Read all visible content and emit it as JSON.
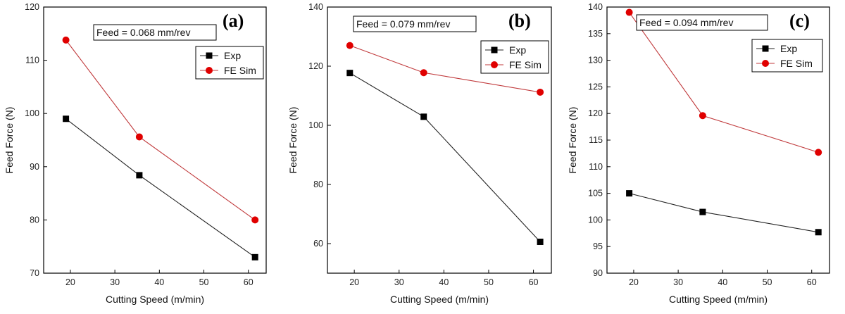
{
  "chart_data": [
    {
      "type": "line",
      "panel_label": "(a)",
      "annotation": "Feed = 0.068 mm/rev",
      "xlabel": "Cutting Speed (m/min)",
      "ylabel": "Feed Force (N)",
      "xlim": [
        14,
        64
      ],
      "ylim": [
        70,
        120
      ],
      "xticks": [
        20,
        30,
        40,
        50,
        60
      ],
      "yticks": [
        70,
        80,
        90,
        100,
        110,
        120
      ],
      "x": [
        19,
        35.5,
        61.5
      ],
      "series": [
        {
          "name": "Exp",
          "color": "#000000",
          "marker": "square",
          "values": [
            99,
            88.4,
            73
          ]
        },
        {
          "name": "FE Sim",
          "color": "#e00000",
          "marker": "circle",
          "values": [
            113.8,
            95.6,
            80
          ]
        }
      ],
      "legend_position": "top-right"
    },
    {
      "type": "line",
      "panel_label": "(b)",
      "annotation": "Feed = 0.079 mm/rev",
      "xlabel": "Cutting Speed  (m/min)",
      "ylabel": "Feed Force (N)",
      "xlim": [
        14,
        64
      ],
      "ylim": [
        50,
        140
      ],
      "xticks": [
        20,
        30,
        40,
        50,
        60
      ],
      "yticks": [
        60,
        80,
        100,
        120,
        140
      ],
      "x": [
        19,
        35.5,
        61.5
      ],
      "series": [
        {
          "name": "Exp",
          "color": "#000000",
          "marker": "square",
          "values": [
            117.7,
            102.9,
            60.6
          ]
        },
        {
          "name": "FE Sim",
          "color": "#e00000",
          "marker": "circle",
          "values": [
            127,
            117.8,
            111.2
          ]
        }
      ],
      "legend_position": "top-right"
    },
    {
      "type": "line",
      "panel_label": "(c)",
      "annotation": "Feed = 0.094 mm/rev",
      "xlabel": "Cutting Speed (m/min)",
      "ylabel": "Feed Force (N)",
      "xlim": [
        14,
        64
      ],
      "ylim": [
        90,
        140
      ],
      "xticks": [
        20,
        30,
        40,
        50,
        60
      ],
      "yticks": [
        90,
        95,
        100,
        105,
        110,
        115,
        120,
        125,
        130,
        135,
        140
      ],
      "x": [
        19,
        35.5,
        61.5
      ],
      "series": [
        {
          "name": "Exp",
          "color": "#000000",
          "marker": "square",
          "values": [
            105,
            101.5,
            97.7
          ]
        },
        {
          "name": "FE Sim",
          "color": "#e00000",
          "marker": "circle",
          "values": [
            139,
            119.6,
            112.7
          ]
        }
      ],
      "legend_position": "top-right"
    }
  ]
}
